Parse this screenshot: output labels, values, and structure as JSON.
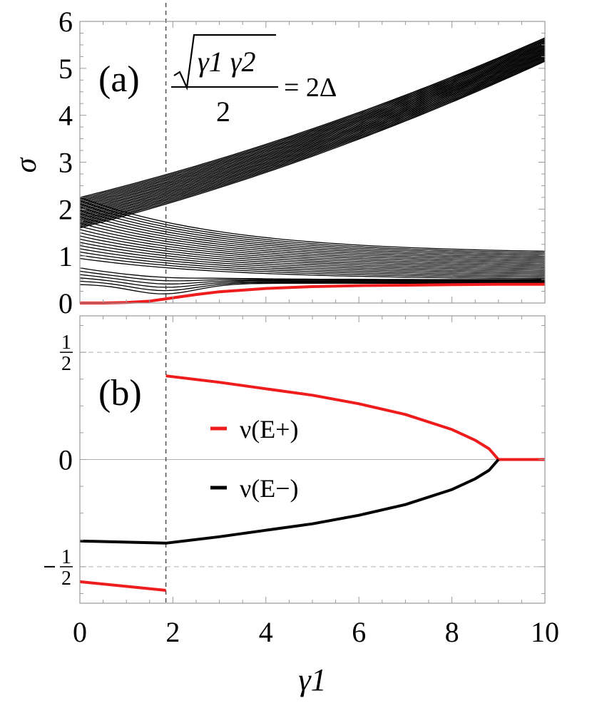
{
  "chart_data": [
    {
      "panel_label": "(a)",
      "type": "line",
      "ylabel": "σ",
      "xlim": [
        0,
        10
      ],
      "ylim": [
        0,
        6
      ],
      "x_ticks": [
        "0",
        "2",
        "4",
        "6",
        "8",
        "10"
      ],
      "y_ticks": [
        "0",
        "1",
        "2",
        "3",
        "4",
        "5",
        "6"
      ],
      "annotation": {
        "numerator": "γ1 γ2",
        "denominator": "2",
        "rhs": "= 2Δ"
      },
      "vertical_line_x": 1.85,
      "highlight_color": "#ee1c1c",
      "band_color": "#000000",
      "upper_band": {
        "count": 25,
        "start": [
          1.6,
          2.25
        ],
        "end": [
          5.15,
          5.65
        ]
      },
      "middle_band": {
        "count": 20,
        "start": [
          0.95,
          2.25
        ],
        "end": [
          0.5,
          1.05
        ]
      },
      "lower_band": {
        "count": 6,
        "start": [
          0.4,
          0.75
        ],
        "end": [
          0.42,
          0.5
        ]
      },
      "highlight_series": {
        "x": [
          0,
          0.5,
          1.0,
          1.5,
          1.85,
          2.5,
          3,
          4,
          5,
          6,
          7,
          8,
          9,
          10
        ],
        "y": [
          0.0,
          0.0,
          0.01,
          0.04,
          0.09,
          0.18,
          0.24,
          0.31,
          0.35,
          0.37,
          0.38,
          0.39,
          0.4,
          0.4
        ]
      }
    },
    {
      "panel_label": "(b)",
      "type": "line",
      "xlabel": "γ1",
      "xlim": [
        0,
        10
      ],
      "ylim": [
        -0.67,
        0.67
      ],
      "x_ticks": [
        "0",
        "2",
        "4",
        "6",
        "8",
        "10"
      ],
      "y_ticks": [
        "1/2",
        "0",
        "-1/2"
      ],
      "dashed_reference_lines": [
        0.5,
        -0.5
      ],
      "vertical_line_x": 1.85,
      "legend": [
        {
          "label": "ν(E+)",
          "color": "#ee1c1c"
        },
        {
          "label": "ν(E−)",
          "color": "#000000"
        }
      ],
      "series": [
        {
          "name": "ν(E+)",
          "color": "#ee1c1c",
          "segments": [
            {
              "x": [
                0,
                1.85
              ],
              "y": [
                -0.57,
                -0.61
              ]
            },
            {
              "x": [
                1.85,
                3,
                4,
                5,
                6,
                7,
                8,
                8.5,
                8.8,
                9.0
              ],
              "y": [
                0.39,
                0.36,
                0.33,
                0.3,
                0.26,
                0.21,
                0.14,
                0.09,
                0.05,
                0.0
              ]
            },
            {
              "x": [
                9.0,
                10
              ],
              "y": [
                0,
                0
              ]
            }
          ]
        },
        {
          "name": "ν(E−)",
          "color": "#000000",
          "segments": [
            {
              "x": [
                0,
                1.85,
                3,
                4,
                5,
                6,
                7,
                8,
                8.5,
                8.8,
                9.0
              ],
              "y": [
                -0.38,
                -0.39,
                -0.36,
                -0.33,
                -0.3,
                -0.26,
                -0.21,
                -0.14,
                -0.09,
                -0.05,
                0.0
              ]
            }
          ]
        }
      ]
    }
  ]
}
